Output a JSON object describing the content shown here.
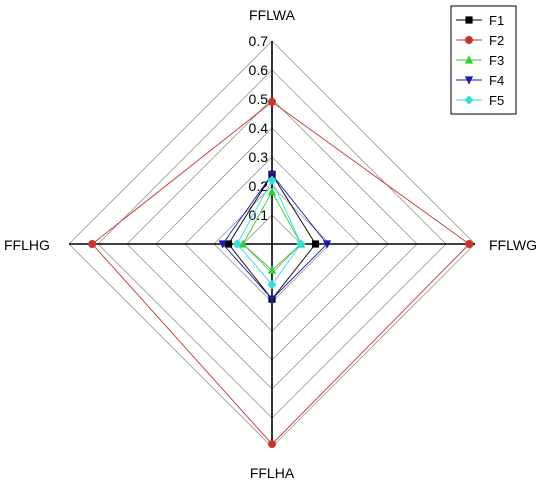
{
  "chart_data": {
    "type": "radar",
    "axes": [
      "FFLWA",
      "FFLWG",
      "FFLHA",
      "FFLHG"
    ],
    "range": [
      0,
      0.7
    ],
    "ticks": [
      "0.1",
      "0.2",
      "0.3",
      "0.4",
      "0.5",
      "0.6",
      "0.7"
    ],
    "tick_values": [
      0.1,
      0.2,
      0.3,
      0.4,
      0.5,
      0.6,
      0.7
    ],
    "grid": true,
    "legend_position": "top-right",
    "series": [
      {
        "name": "F1",
        "values": [
          0.24,
          0.15,
          0.19,
          0.15
        ],
        "color": "#000000",
        "marker": "square"
      },
      {
        "name": "F2",
        "values": [
          0.49,
          0.68,
          0.69,
          0.62
        ],
        "color": "#c8352e",
        "marker": "circle"
      },
      {
        "name": "F3",
        "values": [
          0.18,
          0.1,
          0.09,
          0.1
        ],
        "color": "#33cc33",
        "marker": "triangle-up"
      },
      {
        "name": "F4",
        "values": [
          0.24,
          0.19,
          0.19,
          0.17
        ],
        "color": "#1a1aa6",
        "marker": "triangle-down"
      },
      {
        "name": "F5",
        "values": [
          0.22,
          0.1,
          0.14,
          0.12
        ],
        "color": "#33dddd",
        "marker": "diamond"
      }
    ]
  }
}
